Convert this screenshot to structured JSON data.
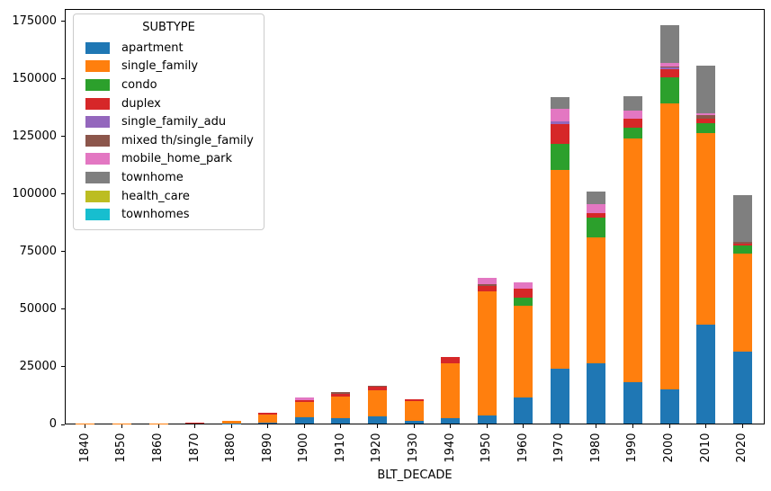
{
  "figure": {
    "background": "#ffffff",
    "spine_color": "#000000"
  },
  "chart_data": {
    "type": "bar",
    "stacked": true,
    "title": "",
    "xlabel": "BLT_DECADE",
    "ylabel": "",
    "ylim": [
      0,
      175000
    ],
    "yticks": [
      0,
      25000,
      50000,
      75000,
      100000,
      125000,
      150000,
      175000
    ],
    "grid": false,
    "legend": {
      "title": "SUBTYPE",
      "position": "upper-left"
    },
    "x_tick_rotation": 90,
    "categories": [
      "1840",
      "1850",
      "1860",
      "1870",
      "1880",
      "1890",
      "1900",
      "1910",
      "1920",
      "1930",
      "1940",
      "1950",
      "1960",
      "1970",
      "1980",
      "1990",
      "2000",
      "2010",
      "2020"
    ],
    "series": [
      {
        "name": "apartment",
        "color": "#1f77b4",
        "values": [
          0,
          0,
          0,
          0,
          100,
          400,
          2600,
          2400,
          3000,
          1300,
          2400,
          3700,
          11500,
          24000,
          26200,
          18000,
          14800,
          42900,
          31400
        ]
      },
      {
        "name": "single_family",
        "color": "#ff7f0e",
        "values": [
          100,
          150,
          200,
          400,
          1100,
          3600,
          6800,
          9500,
          11400,
          8300,
          23900,
          53700,
          39800,
          86000,
          54700,
          105600,
          124000,
          83200,
          42300
        ]
      },
      {
        "name": "condo",
        "color": "#2ca02c",
        "values": [
          0,
          0,
          0,
          0,
          0,
          0,
          0,
          0,
          0,
          0,
          0,
          0,
          3500,
          11400,
          8500,
          4700,
          11400,
          4300,
          3700
        ]
      },
      {
        "name": "duplex",
        "color": "#d62728",
        "values": [
          0,
          0,
          0,
          100,
          0,
          800,
          800,
          800,
          1600,
          900,
          2600,
          2400,
          3900,
          8500,
          2000,
          3900,
          3500,
          1800,
          800
        ]
      },
      {
        "name": "single_family_adu",
        "color": "#9467bd",
        "values": [
          0,
          0,
          0,
          0,
          0,
          0,
          0,
          0,
          0,
          0,
          0,
          0,
          0,
          1300,
          0,
          0,
          700,
          0,
          0
        ]
      },
      {
        "name": "mixed th/single_family",
        "color": "#8c564b",
        "values": [
          0,
          0,
          0,
          0,
          0,
          0,
          0,
          900,
          500,
          0,
          0,
          700,
          0,
          0,
          0,
          0,
          700,
          1500,
          800
        ]
      },
      {
        "name": "mobile_home_park",
        "color": "#e377c2",
        "values": [
          0,
          0,
          0,
          0,
          0,
          0,
          1000,
          0,
          0,
          0,
          0,
          2600,
          2600,
          5500,
          3900,
          3500,
          1500,
          800,
          0
        ]
      },
      {
        "name": "townhome",
        "color": "#7f7f7f",
        "values": [
          0,
          0,
          0,
          0,
          0,
          0,
          0,
          0,
          0,
          0,
          0,
          0,
          0,
          5000,
          5500,
          6500,
          16400,
          20800,
          20300
        ]
      },
      {
        "name": "health_care",
        "color": "#bcbd22",
        "values": [
          0,
          0,
          0,
          0,
          0,
          0,
          0,
          0,
          0,
          0,
          0,
          0,
          0,
          0,
          0,
          0,
          0,
          0,
          0
        ]
      },
      {
        "name": "townhomes",
        "color": "#17becf",
        "values": [
          0,
          0,
          0,
          0,
          0,
          0,
          0,
          0,
          0,
          0,
          0,
          0,
          0,
          0,
          0,
          0,
          0,
          0,
          0
        ]
      }
    ]
  }
}
